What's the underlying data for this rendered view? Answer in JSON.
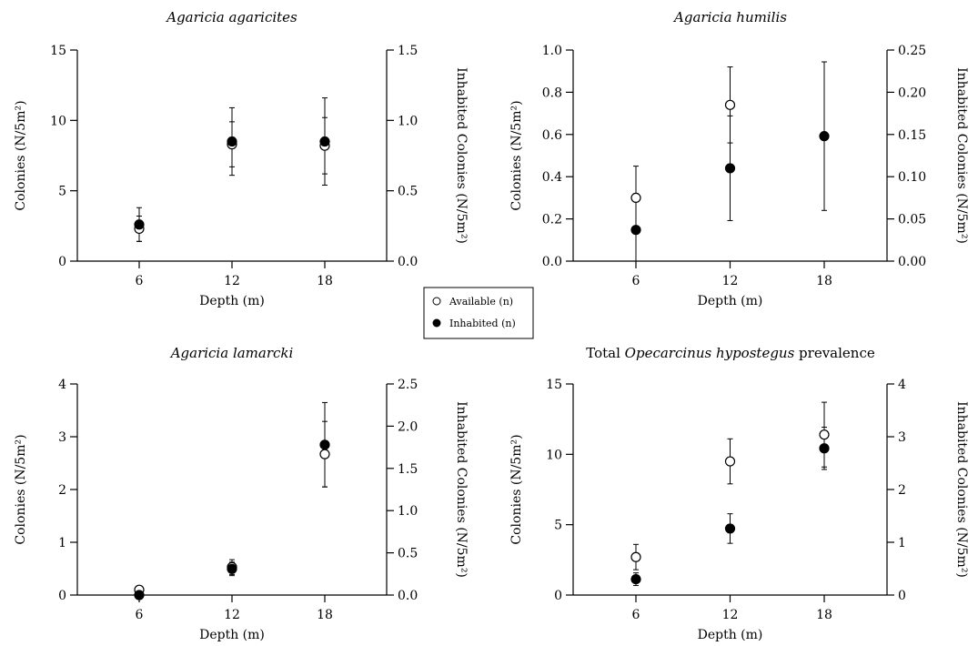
{
  "legend": {
    "items": [
      {
        "label": "Available (n)",
        "marker": "open-circle"
      },
      {
        "label": "Inhabited (n)",
        "marker": "filled-circle"
      }
    ]
  },
  "colors": {
    "marker": "#000000",
    "background": "#ffffff"
  },
  "chart_data": [
    {
      "type": "scatter",
      "title_parts": [
        {
          "text": "Agaricia agaricites",
          "italic": true
        }
      ],
      "xlabel": "Depth (m)",
      "ylabel_left": "Colonies (N/5m²)",
      "ylabel_right": "Inhabited Colonies (N/5m²)",
      "x": [
        6,
        12,
        18
      ],
      "x_ticks": [
        "6",
        "12",
        "18"
      ],
      "ylim_left": [
        0,
        15
      ],
      "left_ticks": [
        "0",
        "5",
        "10",
        "15"
      ],
      "ylim_right": [
        0,
        1.5
      ],
      "right_ticks": [
        "0.0",
        "0.5",
        "1.0",
        "1.5"
      ],
      "series": [
        {
          "name": "Available (n)",
          "axis": "left",
          "marker": "open-circle",
          "values": [
            2.3,
            8.3,
            8.2
          ],
          "err": [
            0.9,
            1.6,
            2.0
          ]
        },
        {
          "name": "Inhabited (n)",
          "axis": "right",
          "marker": "filled-circle",
          "values": [
            0.26,
            0.85,
            0.85
          ],
          "err": [
            0.12,
            0.24,
            0.31
          ]
        }
      ]
    },
    {
      "type": "scatter",
      "title_parts": [
        {
          "text": "Agaricia humilis",
          "italic": true
        }
      ],
      "xlabel": "Depth (m)",
      "ylabel_left": "Colonies (N/5m²)",
      "ylabel_right": "Inhabited Colonies (N/5m²)",
      "x": [
        6,
        12,
        18
      ],
      "x_ticks": [
        "6",
        "12",
        "18"
      ],
      "ylim_left": [
        0,
        1.0
      ],
      "left_ticks": [
        "0.0",
        "0.2",
        "0.4",
        "0.6",
        "0.8",
        "1.0"
      ],
      "ylim_right": [
        0,
        0.25
      ],
      "right_ticks": [
        "0.00",
        "0.05",
        "0.10",
        "0.15",
        "0.20",
        "0.25"
      ],
      "series": [
        {
          "name": "Available (n)",
          "axis": "left",
          "marker": "open-circle",
          "values": [
            0.3,
            0.74,
            0.0
          ],
          "err": [
            0.15,
            0.18,
            0.0
          ]
        },
        {
          "name": "Inhabited (n)",
          "axis": "right",
          "marker": "filled-circle",
          "values": [
            0.037,
            0.11,
            0.148
          ],
          "err": [
            0.037,
            0.062,
            0.088
          ]
        }
      ]
    },
    {
      "type": "scatter",
      "title_parts": [
        {
          "text": "Agaricia lamarcki",
          "italic": true
        }
      ],
      "xlabel": "Depth (m)",
      "ylabel_left": "Colonies (N/5m²)",
      "ylabel_right": "Inhabited Colonies (N/5m²)",
      "x": [
        6,
        12,
        18
      ],
      "x_ticks": [
        "6",
        "12",
        "18"
      ],
      "ylim_left": [
        0,
        4
      ],
      "left_ticks": [
        "0",
        "1",
        "2",
        "3",
        "4"
      ],
      "ylim_right": [
        0,
        2.5
      ],
      "right_ticks": [
        "0.0",
        "0.5",
        "1.0",
        "1.5",
        "2.0",
        "2.5"
      ],
      "series": [
        {
          "name": "Available (n)",
          "axis": "left",
          "marker": "open-circle",
          "values": [
            0.1,
            0.53,
            2.67
          ],
          "err": [
            0.0,
            0.14,
            0.62
          ]
        },
        {
          "name": "Inhabited (n)",
          "axis": "right",
          "marker": "filled-circle",
          "values": [
            0.0,
            0.31,
            1.78
          ],
          "err": [
            0.0,
            0.08,
            0.5
          ]
        }
      ]
    },
    {
      "type": "scatter",
      "title_parts": [
        {
          "text": "Total ",
          "italic": false
        },
        {
          "text": "Opecarcinus hypostegus",
          "italic": true
        },
        {
          "text": " prevalence",
          "italic": false
        }
      ],
      "xlabel": "Depth (m)",
      "ylabel_left": "Colonies (N/5m²)",
      "ylabel_right": "Inhabited Colonies (N/5m²)",
      "x": [
        6,
        12,
        18
      ],
      "x_ticks": [
        "6",
        "12",
        "18"
      ],
      "ylim_left": [
        0,
        15
      ],
      "left_ticks": [
        "0",
        "5",
        "10",
        "15"
      ],
      "ylim_right": [
        0,
        4
      ],
      "right_ticks": [
        "0",
        "1",
        "2",
        "3",
        "4"
      ],
      "series": [
        {
          "name": "Available (n)",
          "axis": "left",
          "marker": "open-circle",
          "values": [
            2.7,
            9.5,
            11.4
          ],
          "err": [
            0.9,
            1.6,
            2.3
          ]
        },
        {
          "name": "Inhabited (n)",
          "axis": "right",
          "marker": "filled-circle",
          "values": [
            0.3,
            1.26,
            2.78
          ],
          "err": [
            0.12,
            0.28,
            0.4
          ]
        }
      ]
    }
  ]
}
